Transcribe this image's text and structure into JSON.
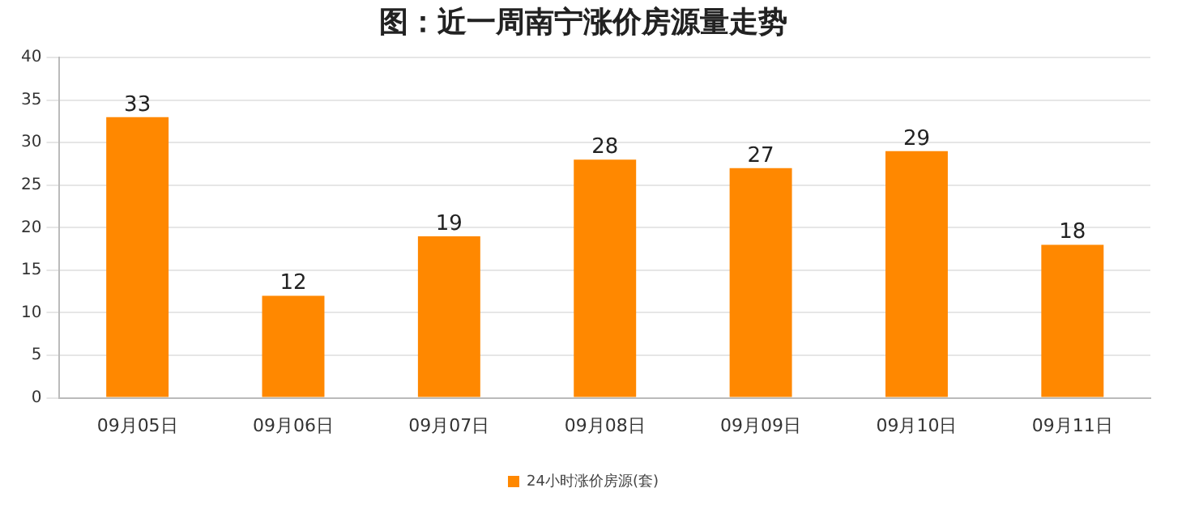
{
  "chart_data": {
    "type": "bar",
    "title": "图：近一周南宁涨价房源量走势",
    "categories": [
      "09月05日",
      "09月06日",
      "09月07日",
      "09月08日",
      "09月09日",
      "09月10日",
      "09月11日"
    ],
    "series": [
      {
        "name": "24小时涨价房源(套)",
        "color": "#ff8800",
        "values": [
          33,
          12,
          19,
          28,
          27,
          29,
          18
        ]
      }
    ],
    "ylim": [
      0,
      40
    ],
    "yticks": [
      0,
      5,
      10,
      15,
      20,
      25,
      30,
      35,
      40
    ],
    "grid": "y",
    "legend": "bottom",
    "data_labels": true
  }
}
